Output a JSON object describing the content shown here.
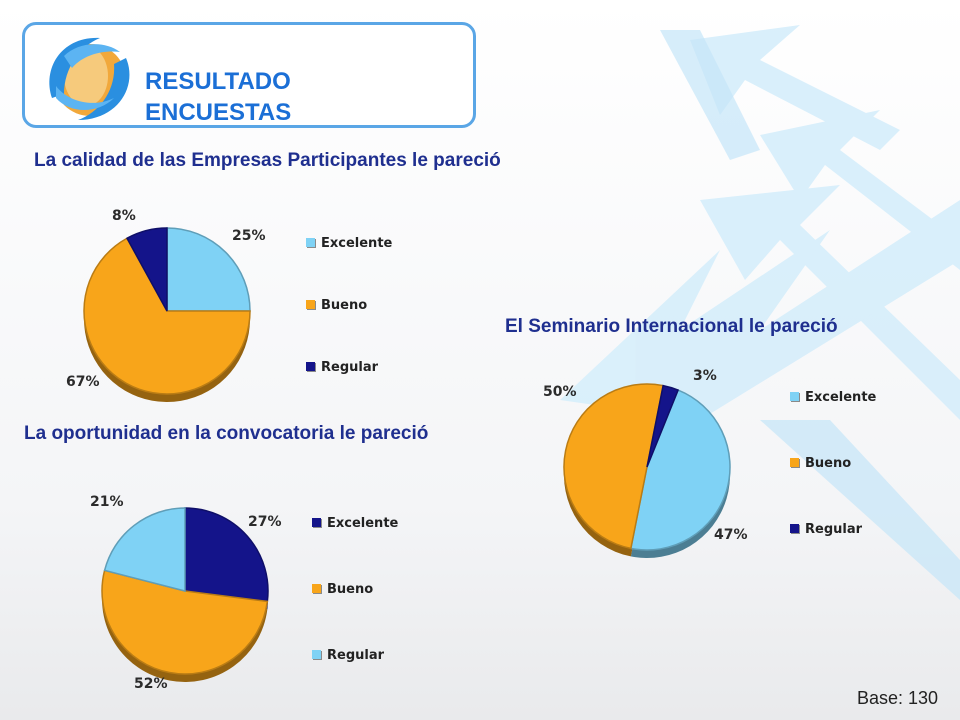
{
  "header": {
    "title_line1": "RESULTADO",
    "title_line2": "ENCUESTAS"
  },
  "colors": {
    "excelente": "#7fd2f5",
    "bueno": "#f8a51a",
    "regular": "#14148a",
    "title": "#1f2f8f",
    "header_text": "#1b6fd6"
  },
  "chart_data": [
    {
      "type": "pie",
      "title": "La calidad de las Empresas Participantes le pareció",
      "categories": [
        "Excelente",
        "Bueno",
        "Regular"
      ],
      "values": [
        25,
        67,
        8
      ],
      "labels": [
        "25%",
        "67%",
        "8%"
      ],
      "colors": [
        "#7fd2f5",
        "#f8a51a",
        "#14148a"
      ],
      "legend": "right",
      "start_angle": 0,
      "legend_entries": [
        "Excelente",
        "Bueno",
        "Regular"
      ]
    },
    {
      "type": "pie",
      "title": "La oportunidad en la convocatoria le pareció",
      "categories": [
        "Excelente",
        "Bueno",
        "Regular"
      ],
      "values": [
        27,
        52,
        21
      ],
      "labels": [
        "27%",
        "52%",
        "21%"
      ],
      "colors": [
        "#14148a",
        "#f8a51a",
        "#7fd2f5"
      ],
      "legend": "right",
      "start_angle": 0,
      "legend_entries": [
        "Excelente",
        "Bueno",
        "Regular"
      ]
    },
    {
      "type": "pie",
      "title": "El Seminario Internacional le pareció",
      "categories": [
        "Excelente",
        "Bueno",
        "Regular"
      ],
      "values": [
        47,
        50,
        3
      ],
      "labels": [
        "47%",
        "50%",
        "3%"
      ],
      "colors": [
        "#7fd2f5",
        "#f8a51a",
        "#14148a"
      ],
      "legend": "right",
      "start_angle": 22,
      "legend_entries": [
        "Excelente",
        "Bueno",
        "Regular"
      ]
    }
  ],
  "footer": {
    "base": "Base: 130"
  }
}
